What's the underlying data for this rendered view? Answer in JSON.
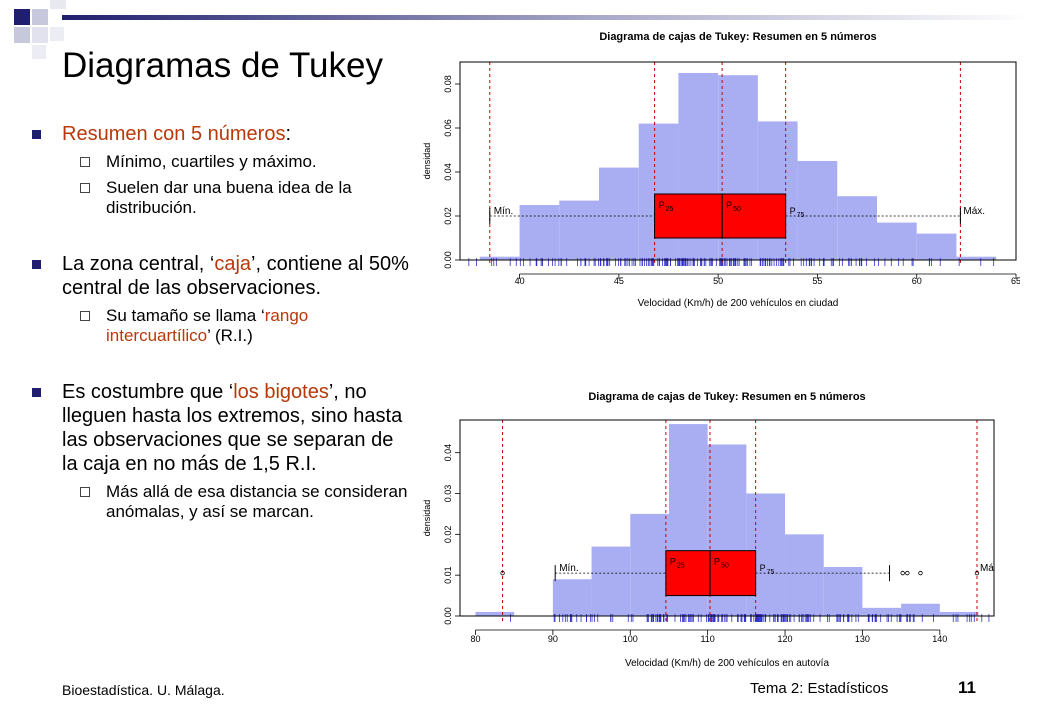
{
  "slide": {
    "title": "Diagramas de Tukey",
    "footer_left": "Bioestadística. U. Málaga.",
    "footer_right": "Tema 2: Estadísticos",
    "page_number": "11",
    "accent_color": "#1f1f6e",
    "highlight_color": "#b8380a"
  },
  "bullets": {
    "b1": {
      "text": "Resumen con 5 números",
      "tail": ":"
    },
    "b1_sub1": "Mínimo, cuartiles y máximo.",
    "b1_sub2": "Suelen dar una buena idea de la distribución.",
    "b2": {
      "pre": "La zona central, ‘",
      "hl": "caja",
      "post": "’, contiene al 50% central de las observaciones."
    },
    "b2_sub1": {
      "pre": "Su tamaño se llama ‘",
      "hl": "rango intercuartílico",
      "post": "’ (R.I.)"
    },
    "b3": {
      "pre": "Es costumbre que ‘",
      "hl": "los bigotes",
      "post": "’, no lleguen hasta los extremos, sino hasta las observaciones que se separan de la caja en no más de 1,5 R.I."
    },
    "b3_sub1": "Más allá de esa distancia se consideran anómalas, y así se marcan."
  },
  "chart_data": [
    {
      "type": "histogram-boxplot",
      "title": "Diagrama de cajas de Tukey: Resumen en 5 números",
      "xlabel": "Velocidad (Km/h) de 200 vehículos en ciudad",
      "ylabel": "densidad",
      "xlim": [
        37,
        65
      ],
      "ylim": [
        0,
        0.09
      ],
      "xticks": [
        40,
        45,
        50,
        55,
        60,
        65
      ],
      "yticks": [
        0.0,
        0.02,
        0.04,
        0.06,
        0.08
      ],
      "bins": [
        {
          "x0": 38,
          "x1": 40,
          "y": 0.0015
        },
        {
          "x0": 40,
          "x1": 42,
          "y": 0.025
        },
        {
          "x0": 42,
          "x1": 44,
          "y": 0.027
        },
        {
          "x0": 44,
          "x1": 46,
          "y": 0.042
        },
        {
          "x0": 46,
          "x1": 48,
          "y": 0.062
        },
        {
          "x0": 48,
          "x1": 50,
          "y": 0.085
        },
        {
          "x0": 50,
          "x1": 52,
          "y": 0.084
        },
        {
          "x0": 52,
          "x1": 54,
          "y": 0.063
        },
        {
          "x0": 54,
          "x1": 56,
          "y": 0.045
        },
        {
          "x0": 56,
          "x1": 58,
          "y": 0.029
        },
        {
          "x0": 58,
          "x1": 60,
          "y": 0.017
        },
        {
          "x0": 60,
          "x1": 62,
          "y": 0.012
        },
        {
          "x0": 62,
          "x1": 64,
          "y": 0.0015
        }
      ],
      "box": {
        "min": 38.5,
        "q1": 46.8,
        "median": 50.2,
        "q3": 53.4,
        "max": 62.2,
        "y": 0.02,
        "ybot": 0.01,
        "ytop": 0.03
      },
      "ref_lines": [
        38.5,
        46.8,
        50.2,
        53.4,
        62.2
      ],
      "outliers": [],
      "rug_range": [
        38.5,
        62.2
      ],
      "labels": {
        "min": "Mín.",
        "max": "Máx.",
        "p25": "P",
        "p25_sub": "25",
        "p50": "P",
        "p50_sub": "50",
        "p75": "P",
        "p75_sub": "75"
      }
    },
    {
      "type": "histogram-boxplot",
      "title": "Diagrama de cajas de Tukey: Resumen en 5 números",
      "xlabel": "Velocidad (Km/h) de 200 vehículos en autovía",
      "ylabel": "densidad",
      "xlim": [
        78,
        147
      ],
      "ylim": [
        0,
        0.048
      ],
      "xticks": [
        80,
        90,
        100,
        110,
        120,
        130,
        140
      ],
      "yticks": [
        0.0,
        0.01,
        0.02,
        0.03,
        0.04
      ],
      "bins": [
        {
          "x0": 80,
          "x1": 85,
          "y": 0.001
        },
        {
          "x0": 90,
          "x1": 95,
          "y": 0.009
        },
        {
          "x0": 95,
          "x1": 100,
          "y": 0.017
        },
        {
          "x0": 100,
          "x1": 105,
          "y": 0.025
        },
        {
          "x0": 105,
          "x1": 110,
          "y": 0.047
        },
        {
          "x0": 110,
          "x1": 115,
          "y": 0.042
        },
        {
          "x0": 115,
          "x1": 120,
          "y": 0.03
        },
        {
          "x0": 120,
          "x1": 125,
          "y": 0.02
        },
        {
          "x0": 125,
          "x1": 130,
          "y": 0.012
        },
        {
          "x0": 130,
          "x1": 135,
          "y": 0.002
        },
        {
          "x0": 135,
          "x1": 140,
          "y": 0.003
        },
        {
          "x0": 140,
          "x1": 145,
          "y": 0.001
        }
      ],
      "box": {
        "min": 90.3,
        "q1": 104.6,
        "median": 110.3,
        "q3": 116.2,
        "max": 133.5,
        "y": 0.0105,
        "ybot": 0.005,
        "ytop": 0.016
      },
      "ref_lines": [
        83.5,
        104.6,
        110.3,
        116.2,
        144.8
      ],
      "outliers": [
        83.5,
        135.2,
        135.8,
        137.5,
        144.8
      ],
      "rug_range": [
        90,
        145
      ],
      "labels": {
        "min": "Mín.",
        "max": "Má",
        "p25": "P",
        "p25_sub": "25",
        "p50": "P",
        "p50_sub": "50",
        "p75": "P",
        "p75_sub": "75"
      }
    }
  ]
}
